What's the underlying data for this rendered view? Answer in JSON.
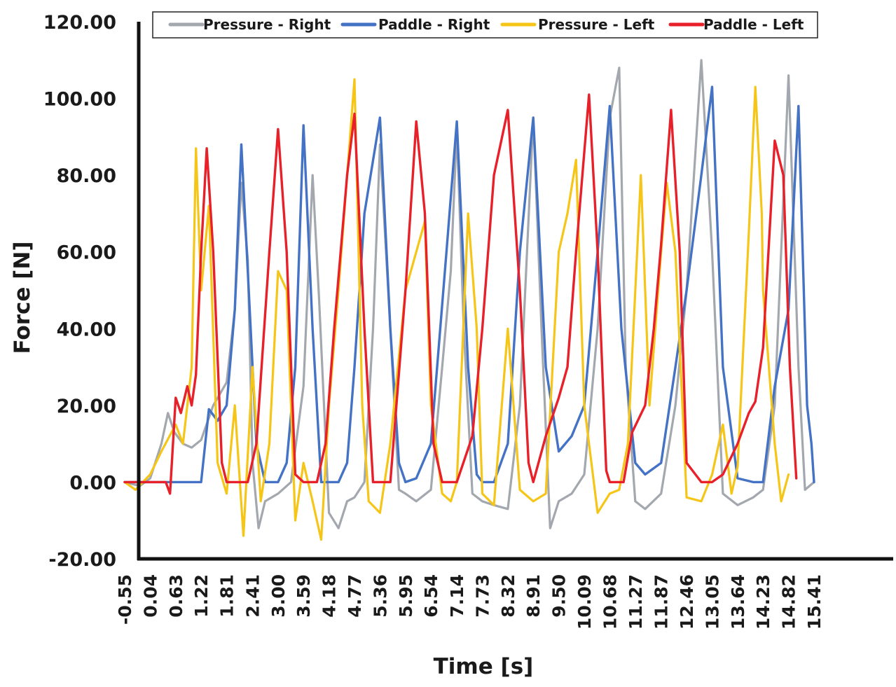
{
  "chart_data": {
    "type": "line",
    "xlabel": "Time [s]",
    "ylabel": "Force [N]",
    "ylim": [
      -20,
      120
    ],
    "xlim": [
      -0.55,
      15.41
    ],
    "y_ticks": [
      "-20.00",
      "0.00",
      "20.00",
      "40.00",
      "60.00",
      "80.00",
      "100.00",
      "120.00"
    ],
    "x_ticks": [
      "-0.55",
      "0.04",
      "0.63",
      "1.22",
      "1.81",
      "2.41",
      "3.00",
      "3.59",
      "4.18",
      "4.77",
      "5.36",
      "5.95",
      "6.54",
      "7.14",
      "7.73",
      "8.32",
      "8.91",
      "9.50",
      "10.09",
      "10.68",
      "11.27",
      "11.87",
      "12.46",
      "13.05",
      "13.64",
      "14.23",
      "14.82",
      "15.41"
    ],
    "grid": false,
    "legend_position": "top",
    "series": [
      {
        "name": "Pressure - Right",
        "color": "#a3a7ae",
        "points": [
          [
            -0.55,
            0
          ],
          [
            -0.2,
            -1
          ],
          [
            0.04,
            1
          ],
          [
            0.3,
            10
          ],
          [
            0.45,
            18
          ],
          [
            0.6,
            13
          ],
          [
            0.8,
            10
          ],
          [
            1.0,
            9
          ],
          [
            1.22,
            11
          ],
          [
            1.5,
            20
          ],
          [
            1.81,
            26
          ],
          [
            2.0,
            45
          ],
          [
            2.15,
            78
          ],
          [
            2.3,
            58
          ],
          [
            2.41,
            5
          ],
          [
            2.55,
            -12
          ],
          [
            2.7,
            -5
          ],
          [
            3.0,
            -3
          ],
          [
            3.3,
            0
          ],
          [
            3.59,
            25
          ],
          [
            3.8,
            80
          ],
          [
            3.95,
            48
          ],
          [
            4.18,
            -8
          ],
          [
            4.4,
            -12
          ],
          [
            4.6,
            -5
          ],
          [
            4.77,
            -4
          ],
          [
            5.0,
            0
          ],
          [
            5.2,
            40
          ],
          [
            5.36,
            88
          ],
          [
            5.55,
            50
          ],
          [
            5.8,
            -2
          ],
          [
            5.95,
            -3
          ],
          [
            6.2,
            -5
          ],
          [
            6.54,
            -2
          ],
          [
            6.8,
            30
          ],
          [
            7.0,
            55
          ],
          [
            7.14,
            92
          ],
          [
            7.3,
            40
          ],
          [
            7.5,
            -3
          ],
          [
            7.73,
            -5
          ],
          [
            8.0,
            -6
          ],
          [
            8.32,
            -7
          ],
          [
            8.6,
            20
          ],
          [
            8.91,
            95
          ],
          [
            9.1,
            40
          ],
          [
            9.3,
            -12
          ],
          [
            9.5,
            -5
          ],
          [
            9.8,
            -3
          ],
          [
            10.09,
            2
          ],
          [
            10.4,
            40
          ],
          [
            10.68,
            95
          ],
          [
            10.9,
            108
          ],
          [
            11.05,
            30
          ],
          [
            11.27,
            -5
          ],
          [
            11.5,
            -7
          ],
          [
            11.87,
            -3
          ],
          [
            12.2,
            20
          ],
          [
            12.46,
            50
          ],
          [
            12.8,
            110
          ],
          [
            13.05,
            60
          ],
          [
            13.3,
            -3
          ],
          [
            13.64,
            -6
          ],
          [
            14.0,
            -4
          ],
          [
            14.23,
            -2
          ],
          [
            14.5,
            20
          ],
          [
            14.82,
            106
          ],
          [
            15.05,
            30
          ],
          [
            15.2,
            -2
          ],
          [
            15.41,
            0
          ]
        ]
      },
      {
        "name": "Paddle - Right",
        "color": "#4472c4",
        "points": [
          [
            -0.55,
            0
          ],
          [
            0.5,
            0
          ],
          [
            1.0,
            0
          ],
          [
            1.22,
            0
          ],
          [
            1.4,
            19
          ],
          [
            1.6,
            16
          ],
          [
            1.81,
            20
          ],
          [
            2.0,
            45
          ],
          [
            2.15,
            88
          ],
          [
            2.3,
            55
          ],
          [
            2.5,
            10
          ],
          [
            2.7,
            0
          ],
          [
            3.0,
            0
          ],
          [
            3.2,
            5
          ],
          [
            3.4,
            30
          ],
          [
            3.59,
            93
          ],
          [
            3.8,
            40
          ],
          [
            4.0,
            0
          ],
          [
            4.4,
            0
          ],
          [
            4.6,
            5
          ],
          [
            4.77,
            30
          ],
          [
            5.0,
            70
          ],
          [
            5.36,
            95
          ],
          [
            5.6,
            40
          ],
          [
            5.8,
            5
          ],
          [
            5.95,
            0
          ],
          [
            6.2,
            1
          ],
          [
            6.54,
            10
          ],
          [
            6.9,
            60
          ],
          [
            7.14,
            94
          ],
          [
            7.4,
            30
          ],
          [
            7.6,
            2
          ],
          [
            7.73,
            0
          ],
          [
            8.0,
            0
          ],
          [
            8.32,
            10
          ],
          [
            8.6,
            60
          ],
          [
            8.91,
            95
          ],
          [
            9.2,
            30
          ],
          [
            9.5,
            8
          ],
          [
            9.8,
            12
          ],
          [
            10.09,
            20
          ],
          [
            10.4,
            60
          ],
          [
            10.68,
            98
          ],
          [
            10.95,
            40
          ],
          [
            11.27,
            5
          ],
          [
            11.5,
            2
          ],
          [
            11.87,
            5
          ],
          [
            12.2,
            30
          ],
          [
            12.46,
            50
          ],
          [
            12.8,
            80
          ],
          [
            13.05,
            103
          ],
          [
            13.3,
            30
          ],
          [
            13.64,
            1
          ],
          [
            14.0,
            0
          ],
          [
            14.23,
            0
          ],
          [
            14.5,
            25
          ],
          [
            14.82,
            45
          ],
          [
            15.05,
            98
          ],
          [
            15.25,
            20
          ],
          [
            15.35,
            10
          ],
          [
            15.41,
            0
          ]
        ]
      },
      {
        "name": "Pressure - Left",
        "color": "#f5c518",
        "points": [
          [
            -0.55,
            0
          ],
          [
            -0.3,
            -2
          ],
          [
            0.04,
            2
          ],
          [
            0.3,
            8
          ],
          [
            0.63,
            15
          ],
          [
            0.8,
            10
          ],
          [
            1.0,
            30
          ],
          [
            1.1,
            87
          ],
          [
            1.22,
            50
          ],
          [
            1.4,
            72
          ],
          [
            1.6,
            5
          ],
          [
            1.81,
            -3
          ],
          [
            2.0,
            20
          ],
          [
            2.2,
            -14
          ],
          [
            2.41,
            30
          ],
          [
            2.6,
            -5
          ],
          [
            2.8,
            10
          ],
          [
            3.0,
            55
          ],
          [
            3.2,
            50
          ],
          [
            3.4,
            -10
          ],
          [
            3.59,
            5
          ],
          [
            3.8,
            -5
          ],
          [
            4.0,
            -15
          ],
          [
            4.18,
            20
          ],
          [
            4.4,
            50
          ],
          [
            4.6,
            80
          ],
          [
            4.77,
            105
          ],
          [
            4.95,
            20
          ],
          [
            5.1,
            -5
          ],
          [
            5.36,
            -8
          ],
          [
            5.6,
            10
          ],
          [
            5.95,
            50
          ],
          [
            6.2,
            60
          ],
          [
            6.4,
            68
          ],
          [
            6.54,
            20
          ],
          [
            6.8,
            -3
          ],
          [
            7.0,
            -5
          ],
          [
            7.14,
            0
          ],
          [
            7.4,
            70
          ],
          [
            7.6,
            40
          ],
          [
            7.73,
            -3
          ],
          [
            8.0,
            -6
          ],
          [
            8.32,
            40
          ],
          [
            8.6,
            -2
          ],
          [
            8.91,
            -5
          ],
          [
            9.2,
            -3
          ],
          [
            9.5,
            60
          ],
          [
            9.7,
            70
          ],
          [
            9.9,
            84
          ],
          [
            10.09,
            20
          ],
          [
            10.4,
            -8
          ],
          [
            10.68,
            -3
          ],
          [
            10.9,
            -2
          ],
          [
            11.1,
            10
          ],
          [
            11.4,
            80
          ],
          [
            11.6,
            20
          ],
          [
            11.87,
            60
          ],
          [
            12.0,
            78
          ],
          [
            12.2,
            60
          ],
          [
            12.46,
            -4
          ],
          [
            12.8,
            -5
          ],
          [
            13.05,
            2
          ],
          [
            13.3,
            15
          ],
          [
            13.5,
            -3
          ],
          [
            13.64,
            4
          ],
          [
            13.9,
            65
          ],
          [
            14.05,
            103
          ],
          [
            14.2,
            70
          ],
          [
            14.23,
            50
          ],
          [
            14.5,
            10
          ],
          [
            14.65,
            -5
          ],
          [
            14.82,
            2
          ]
        ]
      },
      {
        "name": "Paddle - Left",
        "color": "#e8202a",
        "points": [
          [
            -0.55,
            0
          ],
          [
            0.04,
            0
          ],
          [
            0.4,
            0
          ],
          [
            0.5,
            -3
          ],
          [
            0.63,
            22
          ],
          [
            0.75,
            18
          ],
          [
            0.9,
            25
          ],
          [
            1.0,
            20
          ],
          [
            1.1,
            28
          ],
          [
            1.22,
            60
          ],
          [
            1.35,
            87
          ],
          [
            1.5,
            60
          ],
          [
            1.7,
            5
          ],
          [
            1.81,
            0
          ],
          [
            2.1,
            0
          ],
          [
            2.3,
            0
          ],
          [
            2.5,
            10
          ],
          [
            2.8,
            60
          ],
          [
            3.0,
            92
          ],
          [
            3.2,
            60
          ],
          [
            3.4,
            2
          ],
          [
            3.59,
            0
          ],
          [
            3.9,
            0
          ],
          [
            4.1,
            10
          ],
          [
            4.3,
            40
          ],
          [
            4.6,
            80
          ],
          [
            4.77,
            96
          ],
          [
            5.0,
            40
          ],
          [
            5.2,
            0
          ],
          [
            5.36,
            0
          ],
          [
            5.6,
            0
          ],
          [
            5.95,
            50
          ],
          [
            6.2,
            94
          ],
          [
            6.4,
            70
          ],
          [
            6.6,
            10
          ],
          [
            6.8,
            0
          ],
          [
            7.14,
            0
          ],
          [
            7.5,
            12
          ],
          [
            7.73,
            40
          ],
          [
            8.0,
            80
          ],
          [
            8.32,
            97
          ],
          [
            8.6,
            50
          ],
          [
            8.8,
            5
          ],
          [
            8.91,
            0
          ],
          [
            9.2,
            12
          ],
          [
            9.5,
            22
          ],
          [
            9.7,
            30
          ],
          [
            9.9,
            60
          ],
          [
            10.2,
            101
          ],
          [
            10.4,
            60
          ],
          [
            10.6,
            3
          ],
          [
            10.68,
            0
          ],
          [
            11.0,
            0
          ],
          [
            11.2,
            13
          ],
          [
            11.5,
            20
          ],
          [
            11.7,
            40
          ],
          [
            11.87,
            62
          ],
          [
            12.1,
            97
          ],
          [
            12.3,
            60
          ],
          [
            12.46,
            5
          ],
          [
            12.8,
            0
          ],
          [
            13.05,
            0
          ],
          [
            13.3,
            2
          ],
          [
            13.64,
            10
          ],
          [
            13.9,
            18
          ],
          [
            14.05,
            21
          ],
          [
            14.23,
            35
          ],
          [
            14.5,
            89
          ],
          [
            14.7,
            80
          ],
          [
            14.85,
            30
          ],
          [
            15.0,
            1
          ]
        ]
      }
    ]
  }
}
